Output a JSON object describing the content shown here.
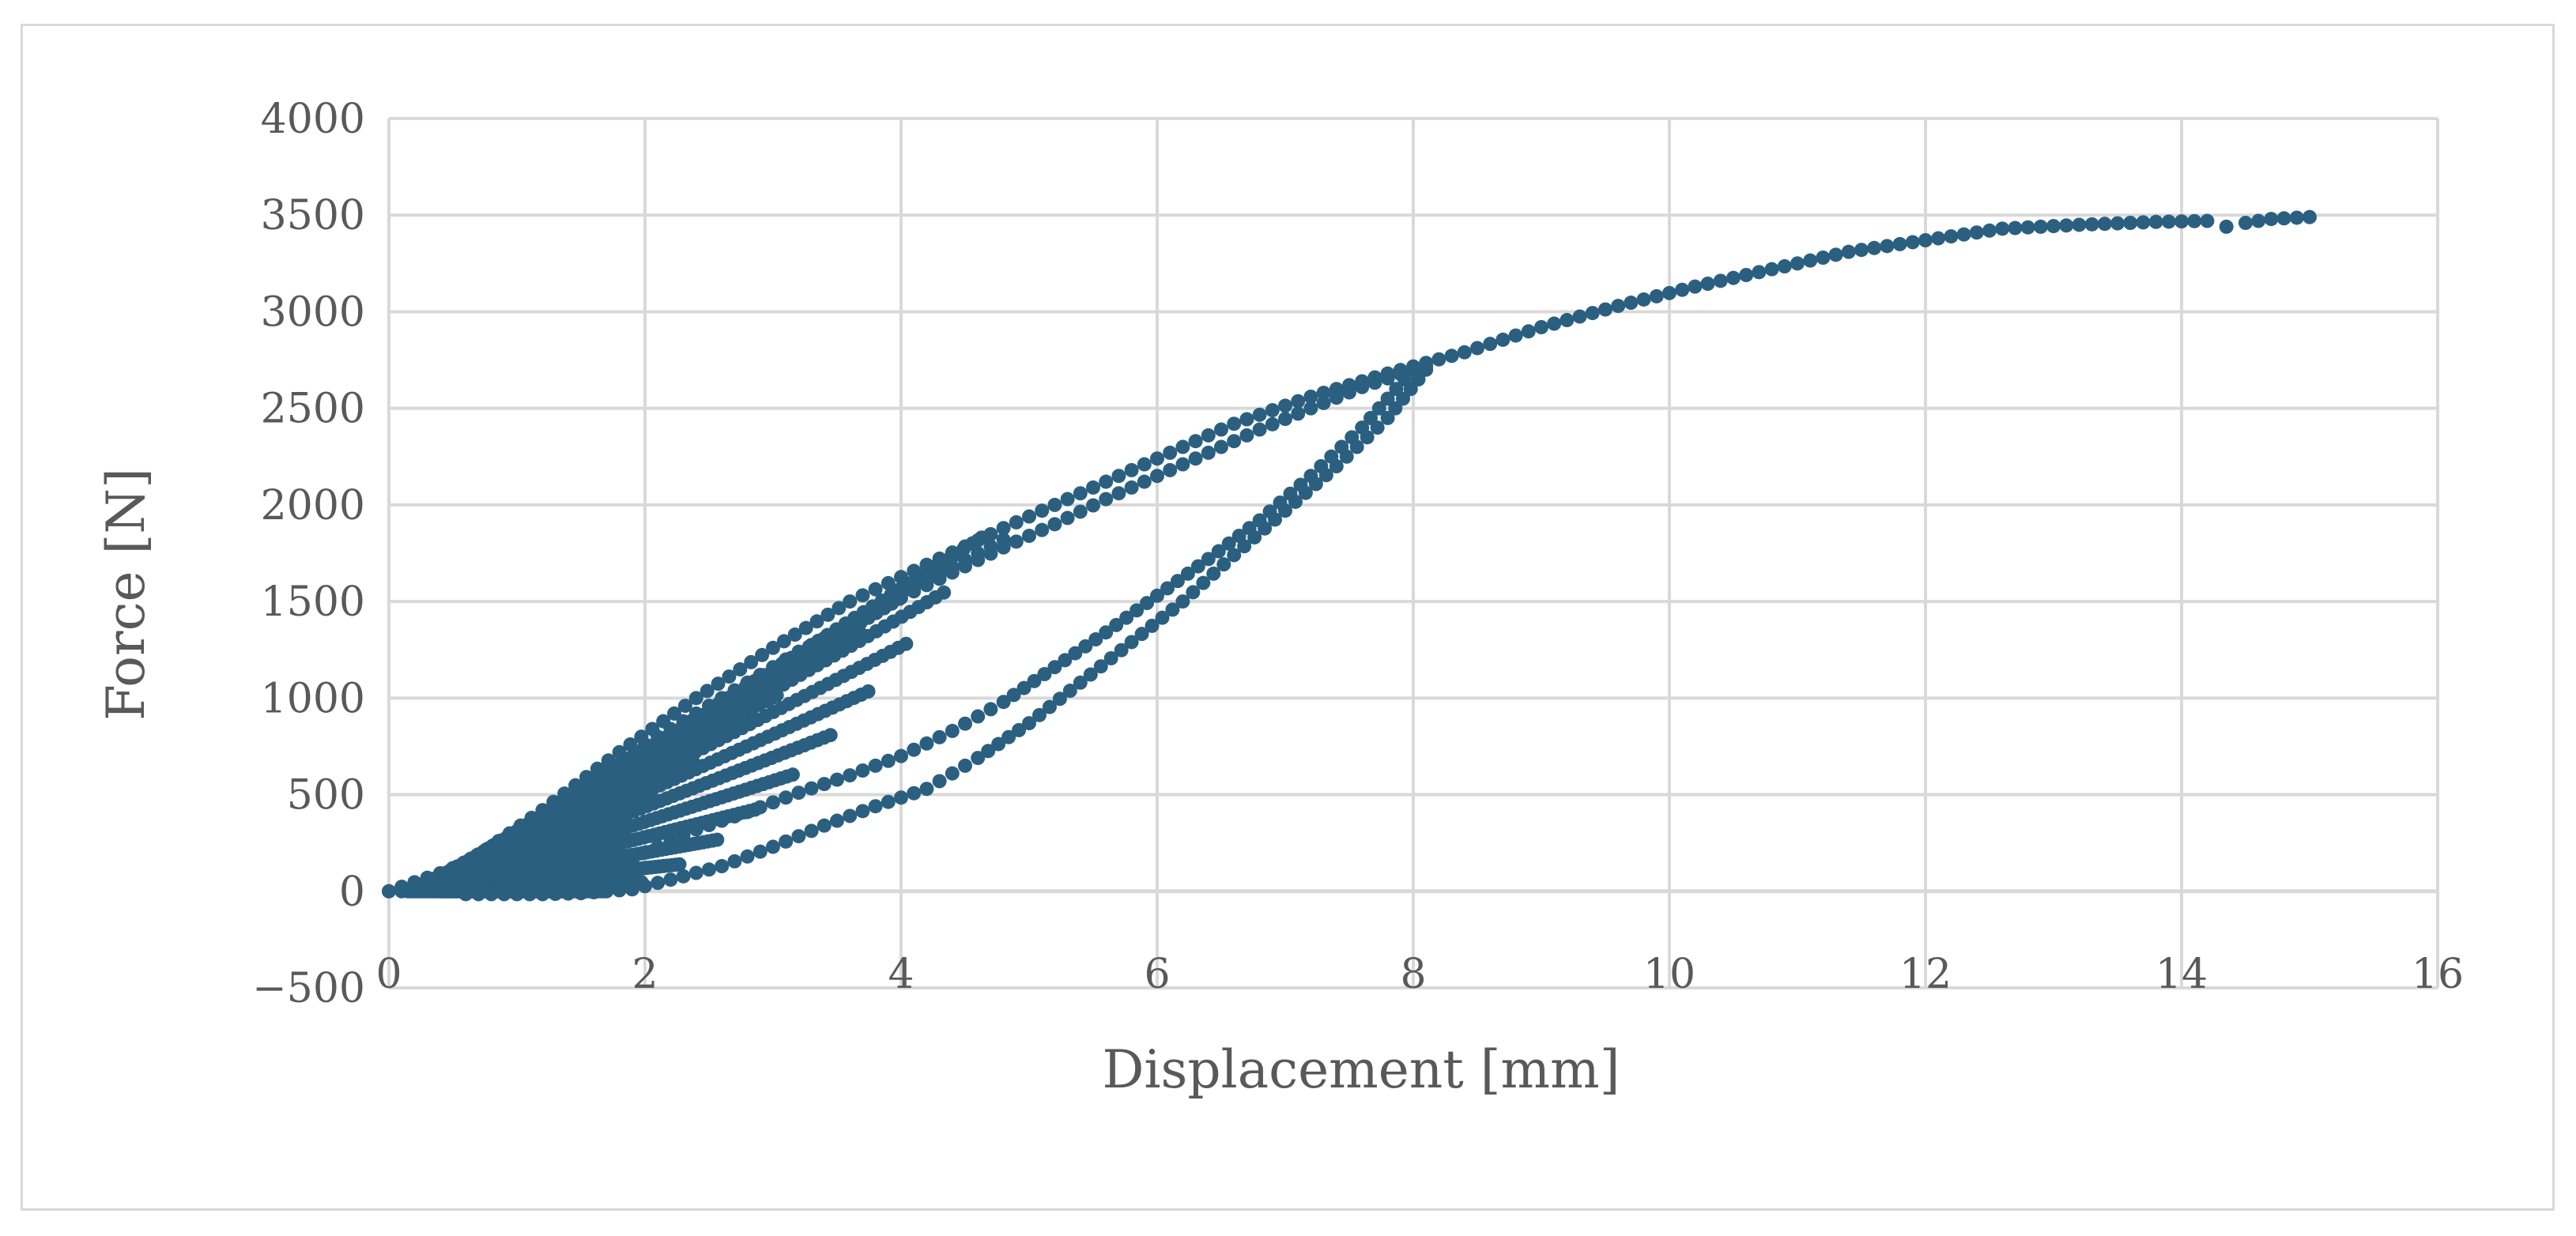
{
  "chart_data": {
    "type": "scatter",
    "title": "",
    "xlabel": "Displacement [mm]",
    "ylabel": "Force [N]",
    "xlim": [
      0,
      16
    ],
    "ylim": [
      -500,
      4000
    ],
    "x_ticks": [
      "0",
      "2",
      "4",
      "6",
      "8",
      "10",
      "12",
      "14",
      "16"
    ],
    "y_ticks": [
      "−500",
      "0",
      "500",
      "1000",
      "1500",
      "2000",
      "2500",
      "3000",
      "3500",
      "4000"
    ],
    "grid": true,
    "legend": "none",
    "marker_color": "#2b5f80",
    "series": [
      {
        "x": [
          0.0,
          0.6,
          1.2,
          1.8,
          2.4,
          3.0,
          3.6,
          4.2,
          4.8,
          5.4,
          6.0,
          6.6,
          7.2,
          7.8,
          8.4,
          9.0,
          9.6,
          10.2,
          10.8,
          11.4,
          12.0,
          12.6,
          13.2,
          13.8,
          14.2,
          14.35,
          14.5,
          14.7,
          15.0
        ],
        "y": [
          0,
          140,
          420,
          720,
          1000,
          1260,
          1500,
          1690,
          1880,
          2060,
          2240,
          2420,
          2560,
          2680,
          2790,
          2920,
          3030,
          3130,
          3220,
          3310,
          3370,
          3430,
          3450,
          3465,
          3470,
          3440,
          3460,
          3480,
          3490
        ]
      },
      {
        "x": [
          0.1,
          0.4,
          0.8,
          1.2,
          1.6,
          2.0,
          2.4,
          2.8,
          3.2,
          3.6,
          4.0,
          4.4,
          4.8,
          5.2,
          5.6,
          6.0,
          6.4,
          6.8,
          7.2,
          7.6,
          8.0,
          8.1
        ],
        "y": [
          0,
          60,
          220,
          400,
          580,
          760,
          920,
          1080,
          1240,
          1380,
          1520,
          1650,
          1780,
          1900,
          2030,
          2150,
          2270,
          2390,
          2500,
          2610,
          2700,
          2720
        ]
      },
      {
        "x": [
          8.0,
          7.6,
          7.2,
          6.8,
          6.4,
          6.0,
          5.6,
          5.2,
          4.8,
          4.4,
          4.0,
          3.6,
          3.2,
          2.8,
          2.4,
          2.0,
          1.8,
          1.6,
          1.4
        ],
        "y": [
          2700,
          2400,
          2150,
          1920,
          1720,
          1530,
          1340,
          1160,
          980,
          830,
          700,
          600,
          510,
          410,
          320,
          200,
          100,
          40,
          0
        ]
      },
      {
        "x": [
          8.1,
          7.8,
          7.4,
          7.0,
          6.6,
          6.2,
          5.8,
          5.4,
          5.0,
          4.6,
          4.2,
          3.8,
          3.4,
          3.0,
          2.6,
          2.2,
          1.9,
          1.7,
          1.5,
          1.2,
          0.9,
          0.6
        ],
        "y": [
          2700,
          2450,
          2200,
          1970,
          1740,
          1500,
          1290,
          1080,
          870,
          690,
          530,
          440,
          340,
          230,
          130,
          60,
          10,
          0,
          -10,
          -15,
          -15,
          -15
        ]
      },
      {
        "x": [
          0.0,
          0.2,
          0.4,
          0.6,
          0.8,
          1.0,
          1.2,
          1.4,
          1.6,
          1.8,
          2.0,
          2.2,
          2.4,
          2.6,
          2.8,
          3.0,
          3.2,
          3.4,
          3.6,
          3.8,
          4.0,
          4.2,
          4.4,
          4.6,
          4.8
        ],
        "y": [
          0,
          40,
          90,
          150,
          220,
          290,
          360,
          440,
          520,
          600,
          680,
          760,
          850,
          940,
          1020,
          1110,
          1200,
          1280,
          1370,
          1450,
          1540,
          1610,
          1680,
          1750,
          1820
        ]
      }
    ]
  }
}
